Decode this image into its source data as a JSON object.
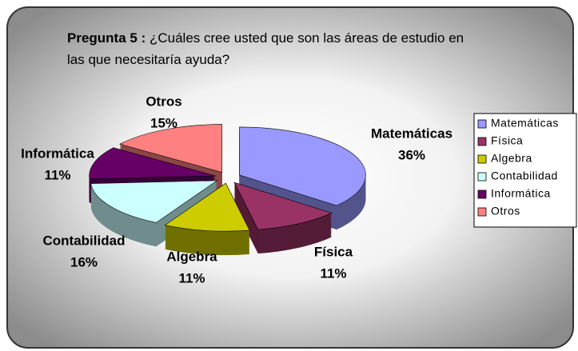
{
  "chart_data": {
    "type": "pie3d",
    "title": "Pregunta 5 :",
    "subtitle": "¿Cuáles cree usted que son las áreas de estudio en las que necesitaría ayuda?",
    "categories": [
      "Matemáticas",
      "Física",
      "Algebra",
      "Contabilidad",
      "Informática",
      "Otros"
    ],
    "values": [
      36,
      11,
      11,
      16,
      11,
      15
    ],
    "value_labels": [
      "36%",
      "11%",
      "11%",
      "16%",
      "11%",
      "15%"
    ],
    "colors": [
      "#9999ff",
      "#993366",
      "#cccc00",
      "#ccffff",
      "#660066",
      "#ff8080"
    ],
    "legend": "right"
  }
}
